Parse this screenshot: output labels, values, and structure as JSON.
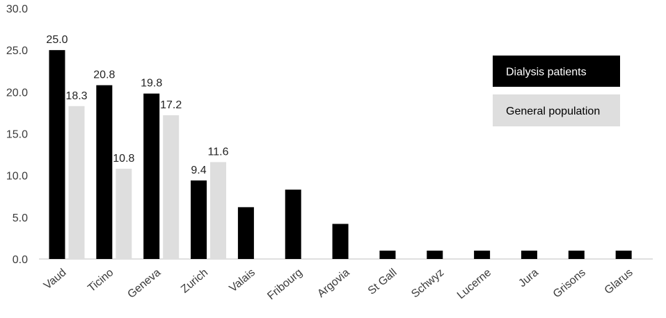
{
  "chart_data": {
    "type": "bar",
    "categories": [
      "Vaud",
      "Ticino",
      "Geneva",
      "Zurich",
      "Valais",
      "Fribourg",
      "Argovia",
      "St Gall",
      "Schwyz",
      "Lucerne",
      "Jura",
      "Grisons",
      "Glarus"
    ],
    "series": [
      {
        "name": "Dialysis patients",
        "color": "#000000",
        "values": [
          25.0,
          20.8,
          19.8,
          9.4,
          6.2,
          8.3,
          4.2,
          1.0,
          1.0,
          1.0,
          1.0,
          1.0,
          1.0
        ],
        "labels": [
          "25.0",
          "20.8",
          "19.8",
          "9.4",
          "",
          "",
          "",
          "",
          "",
          "",
          "",
          "",
          ""
        ]
      },
      {
        "name": "General population",
        "color": "#dedede",
        "values": [
          18.3,
          10.8,
          17.2,
          11.6,
          0,
          0,
          0,
          0,
          0,
          0,
          0,
          0,
          0
        ],
        "labels": [
          "18.3",
          "10.8",
          "17.2",
          "11.6",
          "",
          "",
          "",
          "",
          "",
          "",
          "",
          "",
          ""
        ]
      }
    ],
    "yticks": [
      "0.0",
      "5.0",
      "10.0",
      "15.0",
      "20.0",
      "25.0",
      "30.0"
    ],
    "ylim": [
      0,
      30
    ],
    "title": "",
    "xlabel": "",
    "ylabel": "",
    "grid": false,
    "legend_position": "top-right"
  }
}
